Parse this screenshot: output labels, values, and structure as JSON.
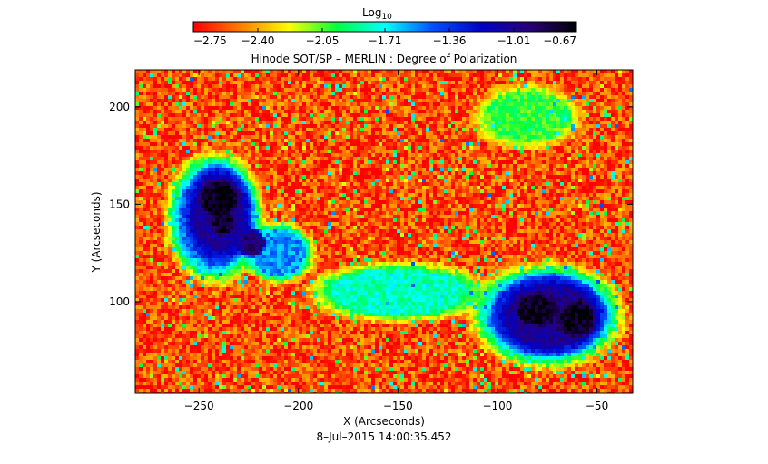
{
  "chart_data": {
    "type": "heatmap",
    "title": "Hinode SOT/SP – MERLIN : Degree of Polarization",
    "xlabel": "X (Arcseconds)",
    "ylabel": "Y (Arcseconds)",
    "timestamp": "8–Jul–2015 14:00:35.452",
    "xlim": [
      -282,
      -32
    ],
    "ylim": [
      53,
      219
    ],
    "x_ticks": [
      {
        "value": -250,
        "label": "−250"
      },
      {
        "value": -200,
        "label": "−200"
      },
      {
        "value": -150,
        "label": "−150"
      },
      {
        "value": -100,
        "label": "−100"
      },
      {
        "value": -50,
        "label": "−50"
      }
    ],
    "y_ticks": [
      {
        "value": 100,
        "label": "100"
      },
      {
        "value": 150,
        "label": "150"
      },
      {
        "value": 200,
        "label": "200"
      }
    ],
    "colorbar": {
      "label": "Log",
      "label_sub": "10",
      "range": [
        -2.75,
        -0.67
      ],
      "ticks": [
        {
          "value": -2.75,
          "label": "−2.75"
        },
        {
          "value": -2.4,
          "label": "−2.40"
        },
        {
          "value": -2.05,
          "label": "−2.05"
        },
        {
          "value": -1.71,
          "label": "−1.71"
        },
        {
          "value": -1.36,
          "label": "−1.36"
        },
        {
          "value": -1.01,
          "label": "−1.01"
        },
        {
          "value": -0.67,
          "label": "−0.67"
        }
      ],
      "colors": [
        "#ff0000",
        "#ff7f00",
        "#ffff00",
        "#00ff40",
        "#00ffff",
        "#0050ff",
        "#0000c8",
        "#28007a",
        "#000000"
      ]
    },
    "background_value": -2.6,
    "regions": [
      {
        "name": "spot-1-halo",
        "x": -242,
        "y": 143,
        "rx": 22,
        "ry": 30,
        "value": -1.5
      },
      {
        "name": "spot-1-penumbra",
        "x": -240,
        "y": 145,
        "rx": 15,
        "ry": 22,
        "value": -1.05
      },
      {
        "name": "spot-1-umbra",
        "x": -240,
        "y": 153,
        "rx": 9,
        "ry": 9,
        "value": -0.72
      },
      {
        "name": "spot-1b-umbra",
        "x": -238,
        "y": 140,
        "rx": 6,
        "ry": 5,
        "value": -0.78
      },
      {
        "name": "spot-1c",
        "x": -223,
        "y": 130,
        "rx": 7,
        "ry": 7,
        "value": -0.95
      },
      {
        "name": "plage-1",
        "x": -210,
        "y": 125,
        "rx": 16,
        "ry": 14,
        "value": -1.55
      },
      {
        "name": "spot-2-halo",
        "x": -75,
        "y": 93,
        "rx": 34,
        "ry": 24,
        "value": -1.5
      },
      {
        "name": "spot-2-penumbra",
        "x": -74,
        "y": 93,
        "rx": 25,
        "ry": 18,
        "value": -1.02
      },
      {
        "name": "spot-2-umbra-a",
        "x": -80,
        "y": 96,
        "rx": 10,
        "ry": 8,
        "value": -0.72
      },
      {
        "name": "spot-2-umbra-b",
        "x": -60,
        "y": 91,
        "rx": 9,
        "ry": 9,
        "value": -0.72
      },
      {
        "name": "network-mid",
        "x": -150,
        "y": 105,
        "rx": 40,
        "ry": 14,
        "value": -1.8
      },
      {
        "name": "network-top",
        "x": -85,
        "y": 195,
        "rx": 25,
        "ry": 15,
        "value": -2.0
      }
    ]
  }
}
